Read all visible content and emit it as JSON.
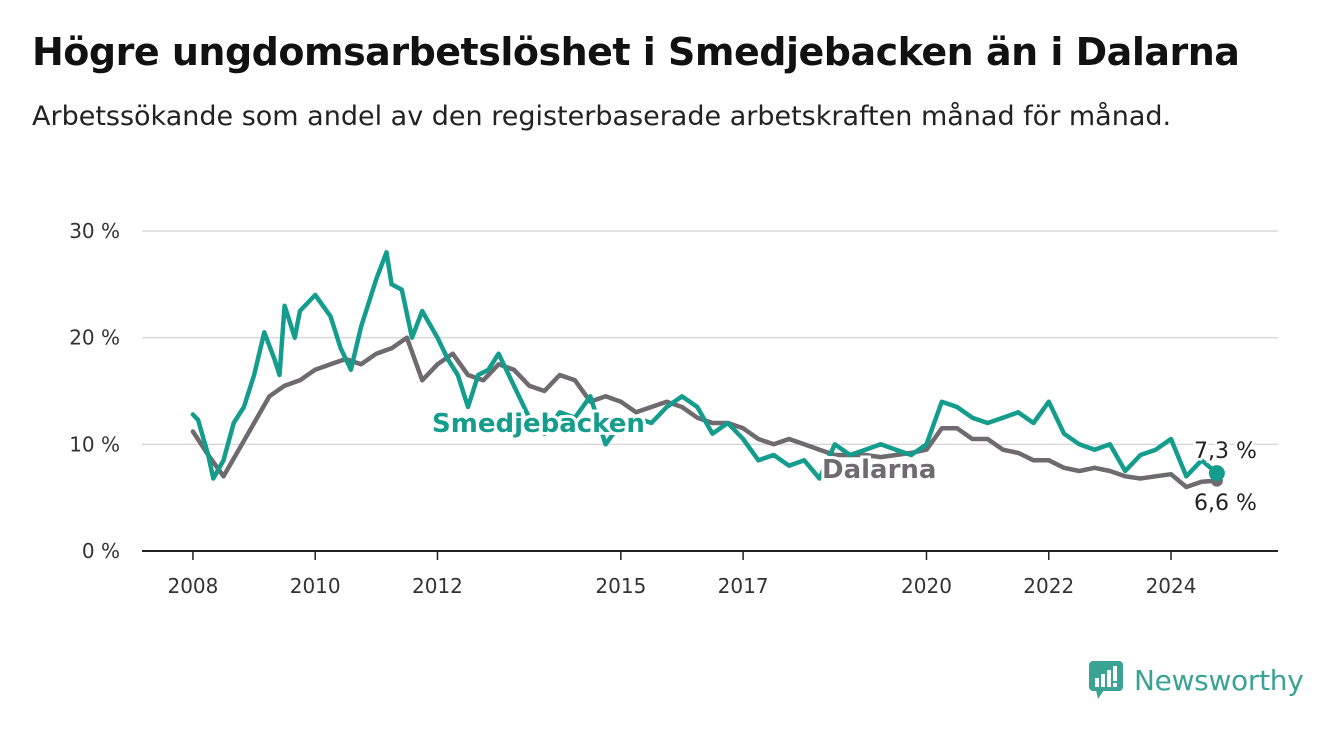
{
  "header": {
    "title": "Högre ungdomsarbetslöshet i Smedjebacken än i Dalarna",
    "subtitle": "Arbetssökande som andel av den registerbaserade arbetskraften månad för månad."
  },
  "brand": {
    "name": "Newsworthy",
    "icon": "newsworthy-logo-icon",
    "color": "#3aa394"
  },
  "chart_data": {
    "type": "line",
    "ylim": [
      0,
      30
    ],
    "yticks": [
      0,
      10,
      20,
      30
    ],
    "ytick_labels": [
      "0 %",
      "10 %",
      "20 %",
      "30 %"
    ],
    "xlim": [
      "2007-03",
      "2025-10"
    ],
    "xticks": [
      "2008-01",
      "2010-01",
      "2012-01",
      "2015-01",
      "2017-01",
      "2020-01",
      "2022-01",
      "2024-01"
    ],
    "xtick_labels": [
      "2008",
      "2010",
      "2012",
      "2015",
      "2017",
      "2020",
      "2022",
      "2024"
    ],
    "grid": true,
    "series": [
      {
        "name": "Dalarna",
        "color": "#6e6a6f",
        "end_label": "6,6 %",
        "points": [
          [
            "2008-01",
            11.2
          ],
          [
            "2008-04",
            9.0
          ],
          [
            "2008-07",
            7.0
          ],
          [
            "2008-10",
            9.5
          ],
          [
            "2009-01",
            12.0
          ],
          [
            "2009-04",
            14.5
          ],
          [
            "2009-07",
            15.5
          ],
          [
            "2009-10",
            16.0
          ],
          [
            "2010-01",
            17.0
          ],
          [
            "2010-04",
            17.5
          ],
          [
            "2010-07",
            18.0
          ],
          [
            "2010-10",
            17.5
          ],
          [
            "2011-01",
            18.5
          ],
          [
            "2011-04",
            19.0
          ],
          [
            "2011-07",
            20.0
          ],
          [
            "2011-10",
            16.0
          ],
          [
            "2012-01",
            17.5
          ],
          [
            "2012-04",
            18.5
          ],
          [
            "2012-07",
            16.5
          ],
          [
            "2012-10",
            16.0
          ],
          [
            "2013-01",
            17.5
          ],
          [
            "2013-04",
            17.0
          ],
          [
            "2013-07",
            15.5
          ],
          [
            "2013-10",
            15.0
          ],
          [
            "2014-01",
            16.5
          ],
          [
            "2014-04",
            16.0
          ],
          [
            "2014-07",
            14.0
          ],
          [
            "2014-10",
            14.5
          ],
          [
            "2015-01",
            14.0
          ],
          [
            "2015-04",
            13.0
          ],
          [
            "2015-07",
            13.5
          ],
          [
            "2015-10",
            14.0
          ],
          [
            "2016-01",
            13.5
          ],
          [
            "2016-04",
            12.5
          ],
          [
            "2016-07",
            12.0
          ],
          [
            "2016-10",
            12.0
          ],
          [
            "2017-01",
            11.5
          ],
          [
            "2017-04",
            10.5
          ],
          [
            "2017-07",
            10.0
          ],
          [
            "2017-10",
            10.5
          ],
          [
            "2018-01",
            10.0
          ],
          [
            "2018-04",
            9.5
          ],
          [
            "2018-07",
            9.0
          ],
          [
            "2018-10",
            9.0
          ],
          [
            "2019-01",
            9.0
          ],
          [
            "2019-04",
            8.8
          ],
          [
            "2019-07",
            9.0
          ],
          [
            "2019-10",
            9.2
          ],
          [
            "2020-01",
            9.5
          ],
          [
            "2020-04",
            11.5
          ],
          [
            "2020-07",
            11.5
          ],
          [
            "2020-10",
            10.5
          ],
          [
            "2021-01",
            10.5
          ],
          [
            "2021-04",
            9.5
          ],
          [
            "2021-07",
            9.2
          ],
          [
            "2021-10",
            8.5
          ],
          [
            "2022-01",
            8.5
          ],
          [
            "2022-04",
            7.8
          ],
          [
            "2022-07",
            7.5
          ],
          [
            "2022-10",
            7.8
          ],
          [
            "2023-01",
            7.5
          ],
          [
            "2023-04",
            7.0
          ],
          [
            "2023-07",
            6.8
          ],
          [
            "2023-10",
            7.0
          ],
          [
            "2024-01",
            7.2
          ],
          [
            "2024-04",
            6.0
          ],
          [
            "2024-07",
            6.5
          ],
          [
            "2024-10",
            6.6
          ]
        ]
      },
      {
        "name": "Smedjebacken",
        "color": "#149d8c",
        "end_label": "7,3 %",
        "points": [
          [
            "2008-01",
            12.8
          ],
          [
            "2008-02",
            12.3
          ],
          [
            "2008-04",
            9.0
          ],
          [
            "2008-05",
            6.8
          ],
          [
            "2008-07",
            8.5
          ],
          [
            "2008-09",
            12.0
          ],
          [
            "2008-11",
            13.5
          ],
          [
            "2009-01",
            16.5
          ],
          [
            "2009-03",
            20.5
          ],
          [
            "2009-05",
            18.0
          ],
          [
            "2009-06",
            16.5
          ],
          [
            "2009-07",
            23.0
          ],
          [
            "2009-09",
            20.0
          ],
          [
            "2009-10",
            22.5
          ],
          [
            "2010-01",
            24.0
          ],
          [
            "2010-04",
            22.0
          ],
          [
            "2010-06",
            19.0
          ],
          [
            "2010-08",
            17.0
          ],
          [
            "2010-10",
            21.0
          ],
          [
            "2011-01",
            25.5
          ],
          [
            "2011-03",
            28.0
          ],
          [
            "2011-04",
            25.0
          ],
          [
            "2011-06",
            24.5
          ],
          [
            "2011-08",
            20.0
          ],
          [
            "2011-10",
            22.5
          ],
          [
            "2012-01",
            20.0
          ],
          [
            "2012-03",
            18.0
          ],
          [
            "2012-05",
            16.5
          ],
          [
            "2012-07",
            13.5
          ],
          [
            "2012-09",
            16.5
          ],
          [
            "2012-11",
            17.0
          ],
          [
            "2013-01",
            18.5
          ],
          [
            "2013-04",
            15.5
          ],
          [
            "2013-07",
            12.5
          ],
          [
            "2013-10",
            11.0
          ],
          [
            "2014-01",
            13.0
          ],
          [
            "2014-04",
            12.5
          ],
          [
            "2014-07",
            14.5
          ],
          [
            "2014-10",
            10.0
          ],
          [
            "2015-01",
            12.0
          ],
          [
            "2015-04",
            12.5
          ],
          [
            "2015-07",
            12.0
          ],
          [
            "2015-10",
            13.5
          ],
          [
            "2016-01",
            14.5
          ],
          [
            "2016-04",
            13.5
          ],
          [
            "2016-07",
            11.0
          ],
          [
            "2016-10",
            12.0
          ],
          [
            "2017-01",
            10.5
          ],
          [
            "2017-04",
            8.5
          ],
          [
            "2017-07",
            9.0
          ],
          [
            "2017-10",
            8.0
          ],
          [
            "2018-01",
            8.5
          ],
          [
            "2018-04",
            6.8
          ],
          [
            "2018-07",
            10.0
          ],
          [
            "2018-10",
            9.0
          ],
          [
            "2019-01",
            9.5
          ],
          [
            "2019-04",
            10.0
          ],
          [
            "2019-07",
            9.5
          ],
          [
            "2019-10",
            9.0
          ],
          [
            "2020-01",
            10.0
          ],
          [
            "2020-04",
            14.0
          ],
          [
            "2020-07",
            13.5
          ],
          [
            "2020-10",
            12.5
          ],
          [
            "2021-01",
            12.0
          ],
          [
            "2021-04",
            12.5
          ],
          [
            "2021-07",
            13.0
          ],
          [
            "2021-10",
            12.0
          ],
          [
            "2022-01",
            14.0
          ],
          [
            "2022-04",
            11.0
          ],
          [
            "2022-07",
            10.0
          ],
          [
            "2022-10",
            9.5
          ],
          [
            "2023-01",
            10.0
          ],
          [
            "2023-04",
            7.5
          ],
          [
            "2023-07",
            9.0
          ],
          [
            "2023-10",
            9.5
          ],
          [
            "2024-01",
            10.5
          ],
          [
            "2024-04",
            7.0
          ],
          [
            "2024-07",
            8.5
          ],
          [
            "2024-10",
            7.3
          ]
        ]
      }
    ]
  }
}
